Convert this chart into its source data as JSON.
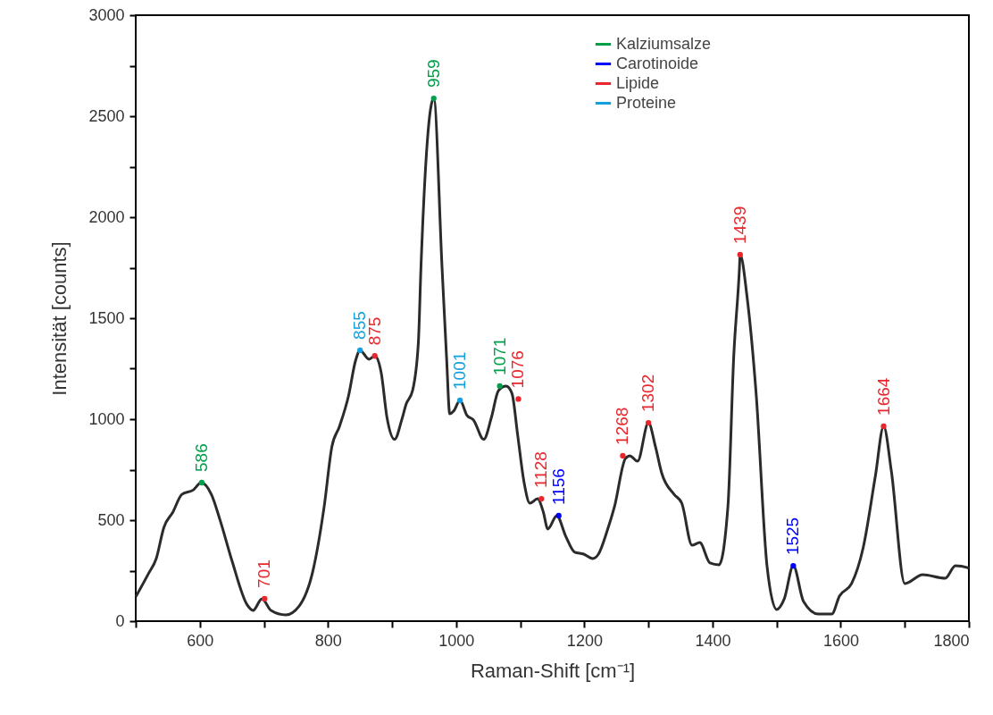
{
  "chart_data": {
    "type": "line",
    "xlabel": "Raman-Shift [cm⁻¹]",
    "ylabel": "Intensität [counts]",
    "xlim": [
      500,
      1800
    ],
    "xticks": [
      {
        "value": 500,
        "label": null
      },
      600,
      {
        "value": 700,
        "label": null
      },
      800,
      {
        "value": 900,
        "label": null
      },
      1000,
      {
        "value": 1100,
        "label": null
      },
      1200,
      {
        "value": 1300,
        "label": null
      },
      1400,
      {
        "value": 1500,
        "label": null
      },
      1600,
      {
        "value": 1700,
        "label": null
      },
      1800
    ],
    "ylim": [
      0,
      3000
    ],
    "yticks": [
      0,
      {
        "value": 250,
        "label": null
      },
      500,
      {
        "value": 750,
        "label": null
      },
      1000,
      {
        "value": 1250,
        "label": null
      },
      1500,
      {
        "value": 1750,
        "label": null
      },
      2000,
      {
        "value": 2250,
        "label": null
      },
      2500,
      {
        "value": 2750,
        "label": null
      },
      3000
    ],
    "grid": false,
    "legend": "top right",
    "line_style": "solid",
    "marker": "circle",
    "series": [
      {
        "color": "#2b2b2b",
        "marker": "none",
        "x": [
          500,
          520,
          532,
          544,
          558,
          572,
          590,
          602,
          618,
          632,
          650,
          674,
          683,
          697,
          711,
          734,
          755,
          776,
          794,
          806,
          818,
          832,
          843,
          850,
          864,
          873,
          883,
          892,
          904,
          915,
          922,
          932,
          941,
          945,
          965,
          978,
          985,
          990,
          996,
          1006,
          1017,
          1027,
          1043,
          1055,
          1066,
          1078,
          1087,
          1096,
          1106,
          1115,
          1127,
          1136,
          1143,
          1157,
          1171,
          1185,
          1199,
          1213,
          1222,
          1236,
          1247,
          1264,
          1271,
          1283,
          1300,
          1311,
          1321,
          1340,
          1352,
          1368,
          1380,
          1396,
          1410,
          1424,
          1433,
          1442,
          1443,
          1454,
          1468,
          1485,
          1500,
          1512,
          1526,
          1542,
          1565,
          1586,
          1598,
          1617,
          1635,
          1654,
          1667,
          1679,
          1700,
          1728,
          1763,
          1779,
          1798,
          1800
        ],
        "values": [
          120,
          236,
          310,
          465,
          540,
          628,
          650,
          686,
          628,
          496,
          301,
          80,
          53,
          111,
          53,
          31,
          75,
          243,
          567,
          863,
          965,
          1115,
          1290,
          1341,
          1297,
          1313,
          1230,
          1009,
          900,
          996,
          1075,
          1142,
          1380,
          1748,
          2588,
          1748,
          1305,
          1026,
          1040,
          1093,
          1018,
          996,
          900,
          1009,
          1142,
          1164,
          1128,
          920,
          686,
          584,
          606,
          540,
          456,
          522,
          420,
          341,
          332,
          310,
          332,
          451,
          567,
          805,
          819,
          792,
          982,
          863,
          730,
          628,
          584,
          376,
          389,
          288,
          279,
          567,
          1305,
          1748,
          1814,
          1602,
          1128,
          274,
          58,
          111,
          274,
          97,
          35,
          35,
          124,
          186,
          363,
          717,
          965,
          743,
          186,
          230,
          212,
          274,
          265,
          260
        ]
      },
      {
        "type": "scatter",
        "name": "Kalziumsalze",
        "color": "#00a04a",
        "x": [
          603,
          965,
          1068
        ],
        "values": [
          686,
          2588,
          1164
        ]
      },
      {
        "type": "scatter",
        "name": "Carotinoide",
        "color": "#0000ff",
        "x": [
          1160,
          1526
        ],
        "values": [
          522,
          274
        ]
      },
      {
        "type": "scatter",
        "name": "Lipide",
        "color": "#e8262b",
        "x": [
          701,
          873,
          1097,
          1133,
          1260,
          1300,
          1443,
          1667
        ],
        "values": [
          111,
          1313,
          1100,
          606,
          819,
          982,
          1814,
          965
        ]
      },
      {
        "type": "scatter",
        "name": "Proteine",
        "color": "#13a0e0",
        "x": [
          850,
          1006
        ],
        "values": [
          1341,
          1093
        ]
      }
    ],
    "annotations": [
      {
        "text": "586",
        "x": 603,
        "y": 686
      },
      {
        "text": "701",
        "x": 701,
        "y": 111
      },
      {
        "text": "855",
        "x": 850,
        "y": 1341
      },
      {
        "text": "875",
        "x": 873,
        "y": 1313
      },
      {
        "text": "959",
        "x": 965,
        "y": 2588
      },
      {
        "text": "1001",
        "x": 1006,
        "y": 1093
      },
      {
        "text": "1071",
        "x": 1068,
        "y": 1164
      },
      {
        "text": "1076",
        "x": 1097,
        "y": 1100
      },
      {
        "text": "1128",
        "x": 1133,
        "y": 606
      },
      {
        "text": "1156",
        "x": 1160,
        "y": 522
      },
      {
        "text": "1268",
        "x": 1260,
        "y": 819
      },
      {
        "text": "1302",
        "x": 1300,
        "y": 982
      },
      {
        "text": "1439",
        "x": 1443,
        "y": 1814
      },
      {
        "text": "1525",
        "x": 1526,
        "y": 274
      },
      {
        "text": "1664",
        "x": 1667,
        "y": 965
      }
    ]
  }
}
